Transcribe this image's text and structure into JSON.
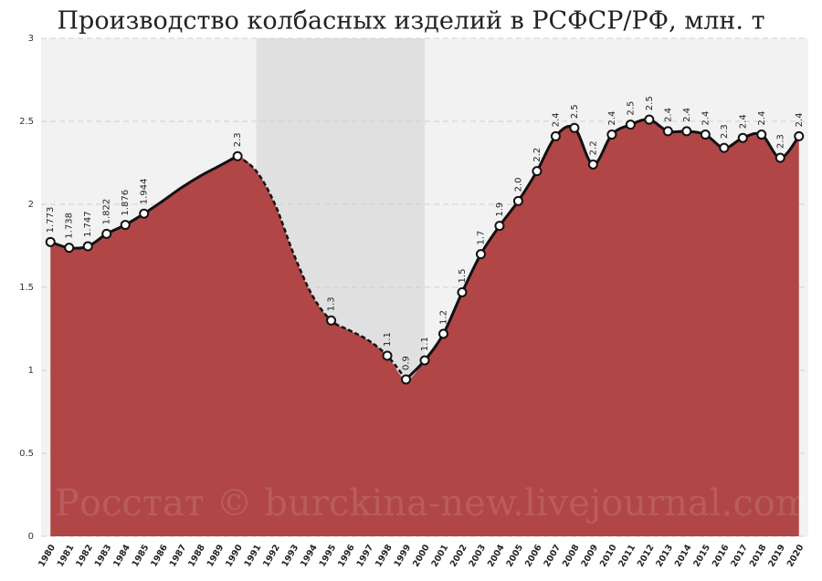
{
  "chart_data": {
    "type": "area",
    "title": "Производство колбасных изделий в РСФСР/РФ, млн. т",
    "watermark": "Росстат © burckina-new.livejournal.com",
    "x": [
      1980,
      1981,
      1982,
      1983,
      1984,
      1985,
      1986,
      1987,
      1988,
      1989,
      1990,
      1991,
      1992,
      1993,
      1994,
      1995,
      1996,
      1997,
      1998,
      1999,
      2000,
      2001,
      2002,
      2003,
      2004,
      2005,
      2006,
      2007,
      2008,
      2009,
      2010,
      2011,
      2012,
      2013,
      2014,
      2015,
      2016,
      2017,
      2018,
      2019,
      2020
    ],
    "series": [
      {
        "name": "Производство",
        "color": "#b04646",
        "values": [
          1.773,
          1.738,
          1.747,
          1.822,
          1.876,
          1.944,
          2.02,
          2.1,
          2.17,
          2.23,
          2.29,
          2.2,
          2.0,
          1.7,
          1.45,
          1.3,
          1.24,
          1.18,
          1.088,
          0.945,
          1.06,
          1.22,
          1.47,
          1.7,
          1.87,
          2.02,
          2.2,
          2.41,
          2.46,
          2.24,
          2.42,
          2.48,
          2.51,
          2.44,
          2.44,
          2.42,
          2.34,
          2.4,
          2.42,
          2.28,
          2.41
        ],
        "value_labels": [
          "1.773",
          "1.738",
          "1.747",
          "1.822",
          "1.876",
          "1.944",
          null,
          null,
          null,
          null,
          "2.3",
          null,
          null,
          null,
          null,
          "1.3",
          null,
          null,
          "1.1",
          "0.9",
          "1.1",
          "1.2",
          "1.5",
          "1.7",
          "1.9",
          "2.0",
          "2.2",
          "2.4",
          "2.5",
          "2.2",
          "2.4",
          "2.5",
          "2.5",
          "2.4",
          "2.4",
          "2.4",
          "2.3",
          "2.4",
          "2.4",
          "2.3",
          "2.4"
        ]
      }
    ],
    "xlim": [
      1979.5,
      2020.5
    ],
    "ylim": [
      0,
      3
    ],
    "yticks": [
      0,
      0.5,
      1,
      1.5,
      2,
      2.5,
      3
    ],
    "grid": true,
    "highlight_range": [
      1991,
      2000
    ],
    "dashed_range": [
      1990,
      1999
    ]
  }
}
